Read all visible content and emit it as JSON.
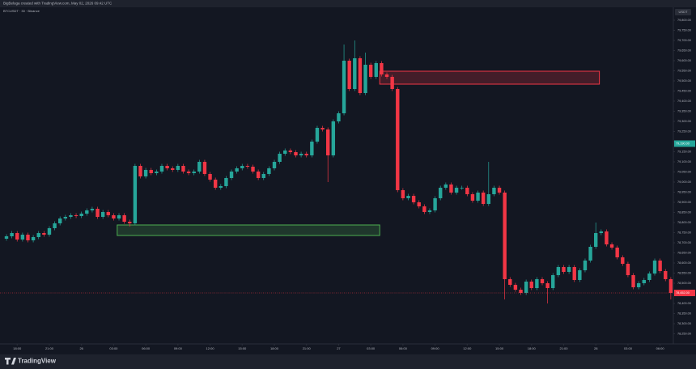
{
  "header": {
    "credit": "BigBeluga created with TradingView.com, May 02, 2026 09:42 UTC",
    "symbol": "BTCUSDT · 30 · Binance",
    "currency": "USDT"
  },
  "footer": {
    "logo": "TradingView"
  },
  "chart_data": {
    "type": "candlestick",
    "up_color": "#26a69a",
    "down_color": "#f23645",
    "open": [
      78720,
      78732,
      78748,
      78716,
      78740,
      78712,
      78728,
      78748,
      78740,
      78772,
      78796,
      78820,
      78828,
      78836,
      78832,
      78844,
      78860,
      78868,
      78828,
      78852,
      78836,
      78820,
      78836,
      78804,
      78796,
      79080,
      79028,
      79060,
      79044,
      79052,
      79080,
      79068,
      79060,
      79080,
      79052,
      79044,
      79052,
      79100,
      79040,
      79012,
      78972,
      78980,
      79020,
      79052,
      79068,
      79080,
      79076,
      79052,
      79020,
      79040,
      79068,
      79100,
      79140,
      79156,
      79148,
      79132,
      79140,
      79132,
      79200,
      79268,
      79260,
      79132,
      79300,
      79340,
      79600,
      79460,
      79612,
      79440,
      79580,
      79520,
      79588,
      79532,
      79520,
      79460,
      78960,
      78920,
      78932,
      78900,
      78880,
      78852,
      78860,
      78920,
      78972,
      78988,
      78948,
      78972,
      78972,
      78940,
      78908,
      78948,
      78892,
      78940,
      78972,
      78948,
      78520,
      78492,
      78468,
      78452,
      78508,
      78476,
      78520,
      78500,
      78476,
      78540,
      78580,
      78556,
      78580,
      78516,
      78564,
      78612,
      78680,
      78748,
      78756,
      78692,
      78676,
      78628,
      78596,
      78540,
      78480,
      78500,
      78516,
      78548,
      78612,
      78560,
      78520
    ],
    "high": [
      78742,
      78758,
      78758,
      78750,
      78750,
      78738,
      78758,
      78758,
      78782,
      78806,
      78830,
      78838,
      78846,
      78846,
      78854,
      78870,
      78878,
      78878,
      78862,
      78862,
      78846,
      78846,
      78846,
      78814,
      79090,
      79090,
      79070,
      79070,
      79062,
      79090,
      79090,
      79078,
      79090,
      79090,
      79062,
      79062,
      79110,
      79110,
      79050,
      79022,
      78990,
      79030,
      79062,
      79078,
      79090,
      79090,
      79086,
      79062,
      79050,
      79078,
      79110,
      79150,
      79166,
      79166,
      79158,
      79150,
      79150,
      79210,
      79278,
      79278,
      79270,
      79310,
      79350,
      79680,
      79610,
      79700,
      79622,
      79640,
      79590,
      79598,
      79598,
      79542,
      79530,
      79470,
      78970,
      78942,
      78942,
      78910,
      78890,
      78870,
      78930,
      78982,
      78998,
      78998,
      78982,
      78982,
      78982,
      78950,
      78958,
      78958,
      79100,
      78982,
      78982,
      78958,
      78530,
      78502,
      78478,
      78518,
      78518,
      78530,
      78530,
      78510,
      78550,
      78590,
      78590,
      78590,
      78590,
      78574,
      78622,
      78690,
      78800,
      78766,
      78766,
      78702,
      78686,
      78638,
      78606,
      78550,
      78510,
      78526,
      78558,
      78622,
      78622,
      78570,
      78530
    ],
    "low": [
      78710,
      78722,
      78706,
      78706,
      78702,
      78702,
      78718,
      78730,
      78730,
      78762,
      78786,
      78810,
      78818,
      78822,
      78822,
      78834,
      78850,
      78818,
      78818,
      78826,
      78810,
      78810,
      78794,
      78780,
      78786,
      79018,
      79018,
      79034,
      79034,
      79042,
      79058,
      79050,
      79050,
      79042,
      79034,
      79034,
      79042,
      79030,
      79002,
      78962,
      78962,
      78970,
      79010,
      79042,
      79058,
      79066,
      79042,
      79010,
      79010,
      79030,
      79058,
      79090,
      79130,
      79138,
      79122,
      79122,
      79122,
      79122,
      79190,
      79250,
      79000,
      79122,
      79290,
      79330,
      79450,
      79450,
      79430,
      79430,
      79510,
      79510,
      79522,
      79510,
      79450,
      78950,
      78910,
      78910,
      78890,
      78870,
      78842,
      78842,
      78850,
      78910,
      78962,
      78938,
      78938,
      78962,
      78930,
      78898,
      78898,
      78882,
      78882,
      78930,
      78938,
      78420,
      78482,
      78458,
      78442,
      78442,
      78466,
      78466,
      78490,
      78400,
      78466,
      78530,
      78546,
      78546,
      78506,
      78506,
      78554,
      78602,
      78670,
      78738,
      78682,
      78666,
      78618,
      78586,
      78530,
      78470,
      78470,
      78490,
      78506,
      78538,
      78550,
      78510,
      78420
    ],
    "close": [
      78732,
      78748,
      78716,
      78740,
      78712,
      78728,
      78748,
      78740,
      78772,
      78796,
      78820,
      78828,
      78836,
      78832,
      78844,
      78860,
      78868,
      78828,
      78852,
      78836,
      78820,
      78836,
      78804,
      78796,
      79080,
      79028,
      79060,
      79044,
      79052,
      79080,
      79068,
      79060,
      79080,
      79052,
      79044,
      79052,
      79100,
      79040,
      79012,
      78972,
      78980,
      79020,
      79052,
      79068,
      79080,
      79076,
      79052,
      79020,
      79040,
      79068,
      79100,
      79140,
      79156,
      79148,
      79132,
      79140,
      79132,
      79200,
      79268,
      79260,
      79132,
      79300,
      79340,
      79600,
      79460,
      79612,
      79440,
      79580,
      79520,
      79588,
      79532,
      79520,
      79460,
      78960,
      78920,
      78932,
      78900,
      78880,
      78852,
      78860,
      78920,
      78972,
      78988,
      78948,
      78972,
      78972,
      78940,
      78908,
      78948,
      78892,
      78940,
      78972,
      78948,
      78520,
      78492,
      78468,
      78452,
      78508,
      78476,
      78520,
      78500,
      78476,
      78540,
      78580,
      78556,
      78580,
      78516,
      78564,
      78612,
      78680,
      78748,
      78756,
      78692,
      78676,
      78628,
      78596,
      78540,
      78480,
      78500,
      78516,
      78548,
      78612,
      78560,
      78520,
      78452
    ],
    "zones": [
      {
        "color": "#4caf50",
        "top": 78788,
        "bottom": 78736,
        "from": 21,
        "to": 70
      },
      {
        "color": "#f23645",
        "top": 79548,
        "bottom": 79484,
        "from": 70,
        "to": 111
      }
    ],
    "ylim": [
      78220,
      79852
    ],
    "yticks": [
      {
        "value": 78250,
        "label": "78,250.00"
      },
      {
        "value": 78300,
        "label": "78,300.00"
      },
      {
        "value": 78350,
        "label": "78,350.00"
      },
      {
        "value": 78400,
        "label": "78,400.00"
      },
      {
        "value": 78450,
        "label": "78,450.00"
      },
      {
        "value": 78500,
        "label": "78,500.00"
      },
      {
        "value": 78550,
        "label": "78,550.00"
      },
      {
        "value": 78600,
        "label": "78,600.00"
      },
      {
        "value": 78650,
        "label": "78,650.00"
      },
      {
        "value": 78700,
        "label": "78,700.00"
      },
      {
        "value": 78750,
        "label": "78,750.00"
      },
      {
        "value": 78800,
        "label": "78,800.00"
      },
      {
        "value": 78850,
        "label": "78,850.00"
      },
      {
        "value": 78900,
        "label": "78,900.00"
      },
      {
        "value": 78950,
        "label": "78,950.00"
      },
      {
        "value": 79000,
        "label": "79,000.00"
      },
      {
        "value": 79050,
        "label": "79,050.00"
      },
      {
        "value": 79100,
        "label": "79,100.00"
      },
      {
        "value": 79150,
        "label": "79,150.00"
      },
      {
        "value": 79200,
        "label": "79,200.00"
      },
      {
        "value": 79250,
        "label": "79,250.00"
      },
      {
        "value": 79300,
        "label": "79,300.00"
      },
      {
        "value": 79350,
        "label": "79,350.00"
      },
      {
        "value": 79400,
        "label": "79,400.00"
      },
      {
        "value": 79450,
        "label": "79,450.00"
      },
      {
        "value": 79500,
        "label": "79,500.00"
      },
      {
        "value": 79550,
        "label": "79,550.00"
      },
      {
        "value": 79600,
        "label": "79,600.00"
      },
      {
        "value": 79650,
        "label": "79,650.00"
      },
      {
        "value": 79700,
        "label": "79,700.00"
      },
      {
        "value": 79750,
        "label": "79,750.00"
      },
      {
        "value": 79800,
        "label": "79,800.00"
      }
    ],
    "highlight_price": {
      "value": 79190,
      "label": "79,190.00"
    },
    "last_price": {
      "value": 78452,
      "label": "78,452.00"
    },
    "xticks": [
      {
        "value": 2,
        "label": "18:00"
      },
      {
        "value": 8,
        "label": "21:00"
      },
      {
        "value": 14,
        "label": "26"
      },
      {
        "value": 20,
        "label": "03:00"
      },
      {
        "value": 26,
        "label": "06:00"
      },
      {
        "value": 32,
        "label": "09:00"
      },
      {
        "value": 38,
        "label": "12:00"
      },
      {
        "value": 44,
        "label": "15:00"
      },
      {
        "value": 50,
        "label": "18:00"
      },
      {
        "value": 56,
        "label": "21:00"
      },
      {
        "value": 62,
        "label": "27"
      },
      {
        "value": 68,
        "label": "03:00"
      },
      {
        "value": 74,
        "label": "06:00"
      },
      {
        "value": 80,
        "label": "09:00"
      },
      {
        "value": 86,
        "label": "12:00"
      },
      {
        "value": 92,
        "label": "15:00"
      },
      {
        "value": 98,
        "label": "18:00"
      },
      {
        "value": 104,
        "label": "21:00"
      },
      {
        "value": 110,
        "label": "28"
      },
      {
        "value": 116,
        "label": "03:00"
      },
      {
        "value": 122,
        "label": "06:00"
      }
    ]
  }
}
